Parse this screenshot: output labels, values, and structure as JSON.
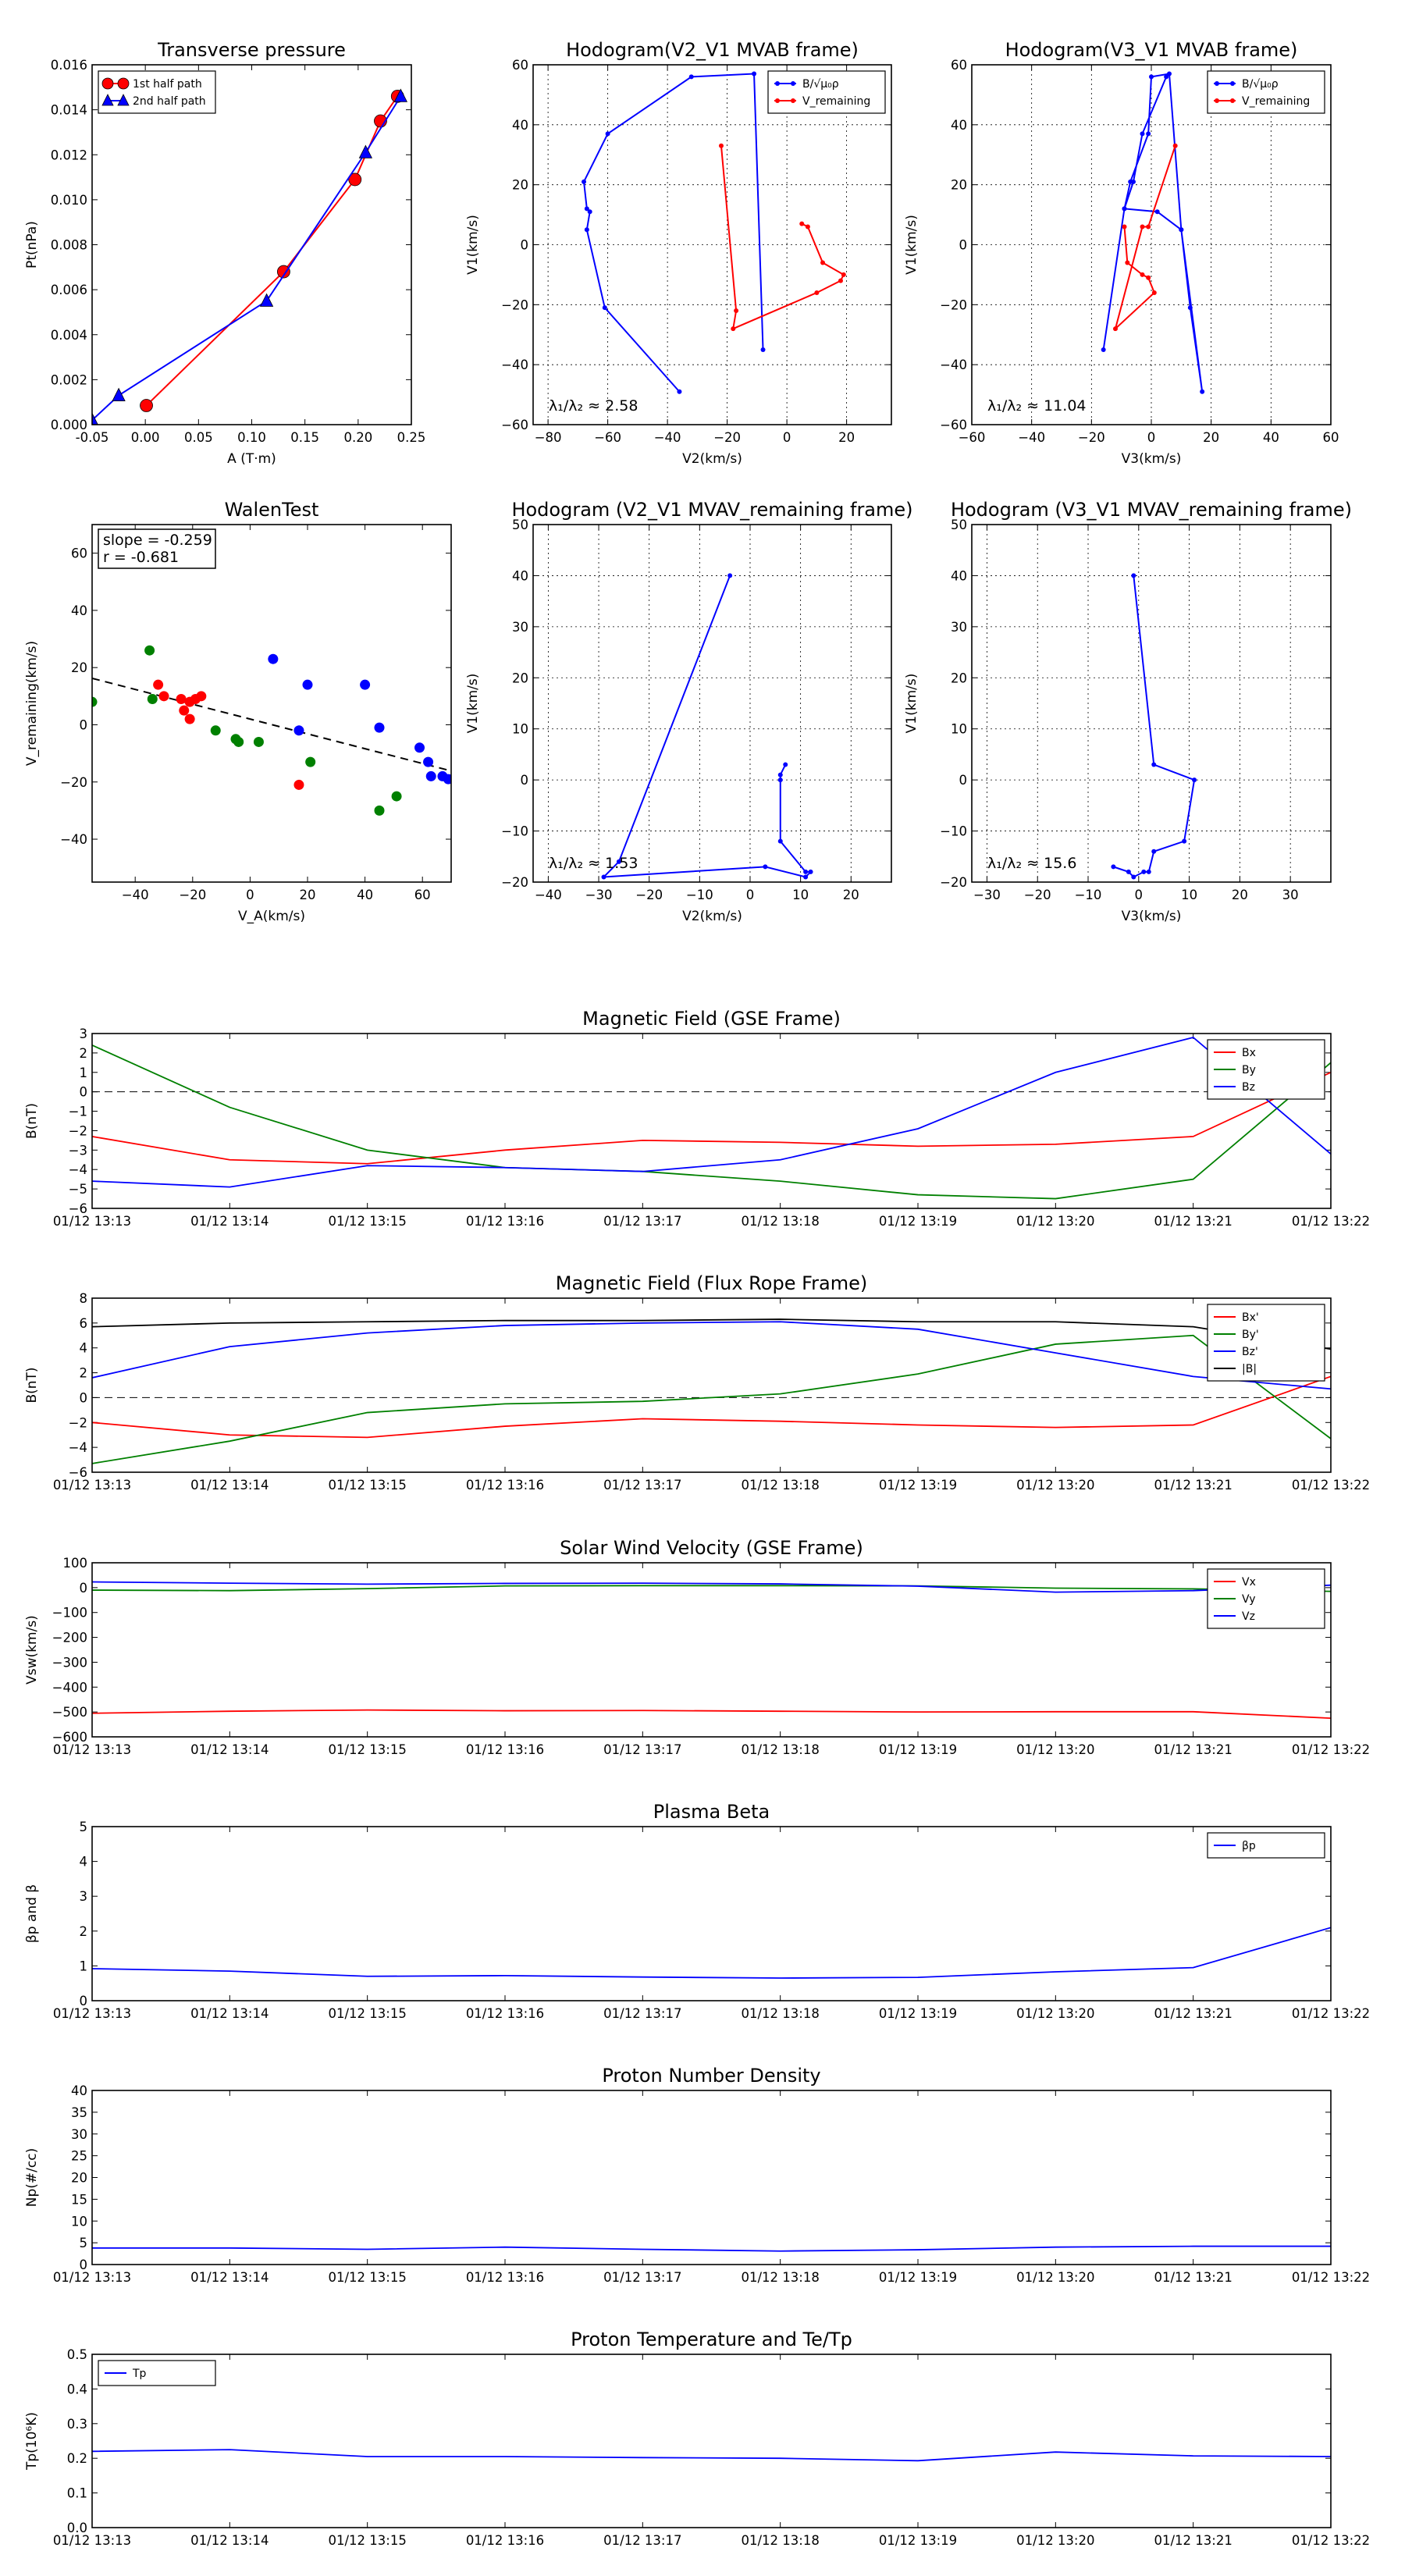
{
  "chart_data": [
    {
      "id": "tp",
      "type": "line",
      "title": "Transverse pressure",
      "xlabel": "A (T·m)",
      "ylabel": "Pt(nPa)",
      "xlim": [
        -0.05,
        0.25
      ],
      "ylim": [
        0,
        0.016
      ],
      "x_ticks": [
        "-0.05",
        "0.00",
        "0.05",
        "0.10",
        "0.15",
        "0.20",
        "0.25"
      ],
      "y_ticks": [
        "0.000",
        "0.002",
        "0.004",
        "0.006",
        "0.008",
        "0.010",
        "0.012",
        "0.014",
        "0.016"
      ],
      "grid": false,
      "legend": "top-left",
      "series": [
        {
          "name": "1st half path",
          "color": "#ff0000",
          "marker": "circle",
          "x": [
            0.001,
            0.13,
            0.197,
            0.221,
            0.237
          ],
          "y": [
            0.00085,
            0.0068,
            0.0109,
            0.0135,
            0.0146
          ]
        },
        {
          "name": "2nd half path",
          "color": "#0000ff",
          "marker": "triangle",
          "x": [
            -0.05,
            -0.025,
            0.114,
            0.207,
            0.24
          ],
          "y": [
            0.0002,
            0.0013,
            0.0055,
            0.0121,
            0.0146
          ]
        }
      ]
    },
    {
      "id": "h1",
      "type": "line",
      "title": "Hodogram(V2_V1 MVAB frame)",
      "xlabel": "V2(km/s)",
      "ylabel": "V1(km/s)",
      "xlim": [
        -85,
        35
      ],
      "ylim": [
        -60,
        60
      ],
      "x_ticks": [
        "−80",
        "−60",
        "−40",
        "−20",
        "0",
        "20"
      ],
      "y_ticks": [
        "−60",
        "−40",
        "−20",
        "0",
        "20",
        "40",
        "60"
      ],
      "grid": true,
      "legend": "top-right",
      "annotation": "λ₁/λ₂ ≈ 2.58",
      "series": [
        {
          "name": "B/√μ₀ρ",
          "color": "#0000ff",
          "x": [
            -36,
            -61,
            -67,
            -66,
            -67,
            -68,
            -60,
            -32,
            -11,
            -8
          ],
          "y": [
            -49,
            -21,
            5,
            11,
            12,
            21,
            37,
            56,
            57,
            -35
          ]
        },
        {
          "name": "V_remaining",
          "color": "#ff0000",
          "x": [
            -22,
            -17,
            -18,
            10,
            18,
            19,
            12,
            7,
            5
          ],
          "y": [
            33,
            -22,
            -28,
            -16,
            -12,
            -10,
            -6,
            6,
            7
          ]
        }
      ]
    },
    {
      "id": "h2",
      "type": "line",
      "title": "Hodogram(V3_V1 MVAB frame)",
      "xlabel": "V3(km/s)",
      "ylabel": "V1(km/s)",
      "xlim": [
        -60,
        60
      ],
      "ylim": [
        -60,
        60
      ],
      "x_ticks": [
        "−60",
        "−40",
        "−20",
        "0",
        "20",
        "40",
        "60"
      ],
      "y_ticks": [
        "−60",
        "−40",
        "−20",
        "0",
        "20",
        "40",
        "60"
      ],
      "grid": true,
      "legend": "top-right",
      "annotation": "λ₁/λ₂ ≈ 11.04",
      "series": [
        {
          "name": "B/√μ₀ρ",
          "color": "#0000ff",
          "x": [
            -16,
            -9,
            -7,
            -1,
            0,
            6,
            10,
            17,
            13,
            10,
            2,
            -9,
            -6,
            -3,
            5
          ],
          "y": [
            -35,
            12,
            21,
            37,
            56,
            57,
            5,
            -49,
            -21,
            5,
            11,
            12,
            21,
            37,
            56
          ]
        },
        {
          "name": "V_remaining",
          "color": "#ff0000",
          "x": [
            8,
            -1,
            -3,
            -12,
            1,
            -1,
            -3,
            -8,
            -9
          ],
          "y": [
            33,
            6,
            6,
            -28,
            -16,
            -11,
            -10,
            -6,
            6
          ]
        }
      ]
    },
    {
      "id": "walen",
      "type": "scatter",
      "title": "WalenTest",
      "xlabel": "V_A(km/s)",
      "ylabel": "V_remaining(km/s)",
      "xlim": [
        -55,
        70
      ],
      "ylim": [
        -55,
        70
      ],
      "x_ticks": [
        "−40",
        "−20",
        "0",
        "20",
        "40",
        "60"
      ],
      "y_ticks": [
        "−40",
        "−20",
        "0",
        "20",
        "40",
        "60"
      ],
      "grid": false,
      "annotation_lines": [
        "slope = -0.259",
        "r = -0.681"
      ],
      "fit": {
        "slope": -0.259,
        "intercept": 2.0
      },
      "series": [
        {
          "color": "#ff0000",
          "x": [
            -32,
            -30,
            -24,
            -21,
            -19,
            -23,
            -21,
            -17,
            17
          ],
          "y": [
            14,
            10,
            9,
            8,
            9,
            5,
            2,
            10,
            -21
          ]
        },
        {
          "color": "#008000",
          "x": [
            -55,
            -35,
            -34,
            -12,
            -5,
            -4,
            3,
            21,
            45,
            51
          ],
          "y": [
            8,
            26,
            9,
            -2,
            -5,
            -6,
            -6,
            -13,
            -30,
            -25
          ]
        },
        {
          "color": "#0000ff",
          "x": [
            8,
            17,
            20,
            40,
            45,
            59,
            62,
            63,
            67,
            69
          ],
          "y": [
            23,
            -2,
            14,
            14,
            -1,
            -8,
            -13,
            -18,
            -18,
            -19
          ]
        }
      ]
    },
    {
      "id": "h3",
      "type": "line",
      "title": "Hodogram (V2_V1 MVAV_remaining frame)",
      "xlabel": "V2(km/s)",
      "ylabel": "V1(km/s)",
      "xlim": [
        -43,
        28
      ],
      "ylim": [
        -20,
        50
      ],
      "x_ticks": [
        "−40",
        "−30",
        "−20",
        "−10",
        "0",
        "10",
        "20"
      ],
      "y_ticks": [
        "−20",
        "−10",
        "0",
        "10",
        "20",
        "30",
        "40",
        "50"
      ],
      "grid": true,
      "annotation": "λ₁/λ₂ ≈ 1.53",
      "series": [
        {
          "color": "#0000ff",
          "x": [
            -4,
            -26,
            -29,
            3,
            11,
            12,
            11,
            6,
            6,
            6,
            7
          ],
          "y": [
            40,
            -16,
            -19,
            -17,
            -19,
            -18,
            -18,
            -12,
            0,
            1,
            3
          ]
        }
      ]
    },
    {
      "id": "h4",
      "type": "line",
      "title": "Hodogram (V3_V1 MVAV_remaining frame)",
      "xlabel": "V3(km/s)",
      "ylabel": "V1(km/s)",
      "xlim": [
        -33,
        38
      ],
      "ylim": [
        -20,
        50
      ],
      "x_ticks": [
        "−30",
        "−20",
        "−10",
        "0",
        "10",
        "20",
        "30"
      ],
      "y_ticks": [
        "−20",
        "−10",
        "0",
        "10",
        "20",
        "30",
        "40",
        "50"
      ],
      "grid": true,
      "annotation": "λ₁/λ₂ ≈ 15.6",
      "series": [
        {
          "color": "#0000ff",
          "x": [
            -1,
            3,
            11,
            9,
            3,
            2,
            1,
            -1,
            -2,
            -5
          ],
          "y": [
            40,
            3,
            0,
            -12,
            -14,
            -18,
            -18,
            -19,
            -18,
            -17
          ]
        }
      ]
    },
    {
      "id": "ts1",
      "type": "line",
      "title": "Magnetic Field (GSE Frame)",
      "ylabel": "B(nT)",
      "ylim": [
        -6,
        3
      ],
      "y_ticks": [
        "−6",
        "−5",
        "−4",
        "−3",
        "−2",
        "−1",
        "0",
        "1",
        "2",
        "3"
      ],
      "zero_line": true,
      "legend": "top-right",
      "series": [
        {
          "name": "Bx",
          "color": "#ff0000",
          "values": [
            -2.3,
            -3.5,
            -3.7,
            -3.0,
            -2.5,
            -2.6,
            -2.8,
            -2.7,
            -2.3,
            1.0
          ]
        },
        {
          "name": "By",
          "color": "#008000",
          "values": [
            2.4,
            -0.8,
            -3.0,
            -3.9,
            -4.1,
            -4.6,
            -5.3,
            -5.5,
            -4.5,
            1.5
          ]
        },
        {
          "name": "Bz",
          "color": "#0000ff",
          "values": [
            -4.6,
            -4.9,
            -3.8,
            -3.9,
            -4.1,
            -3.5,
            -1.9,
            1.0,
            2.8,
            -3.2
          ]
        }
      ]
    },
    {
      "id": "ts2",
      "type": "line",
      "title": "Magnetic Field (Flux Rope Frame)",
      "ylabel": "B(nT)",
      "ylim": [
        -6,
        8
      ],
      "y_ticks": [
        "−6",
        "−4",
        "−2",
        "0",
        "2",
        "4",
        "6",
        "8"
      ],
      "zero_line": true,
      "legend": "top-right",
      "series": [
        {
          "name": "Bx'",
          "color": "#ff0000",
          "values": [
            -2.0,
            -3.0,
            -3.2,
            -2.3,
            -1.7,
            -1.9,
            -2.2,
            -2.4,
            -2.2,
            1.7
          ]
        },
        {
          "name": "By'",
          "color": "#008000",
          "values": [
            -5.3,
            -3.5,
            -1.2,
            -0.5,
            -0.3,
            0.3,
            1.9,
            4.3,
            5.0,
            -3.3
          ]
        },
        {
          "name": "Bz'",
          "color": "#0000ff",
          "values": [
            1.6,
            4.1,
            5.2,
            5.8,
            6.0,
            6.1,
            5.5,
            3.6,
            1.7,
            0.7
          ]
        },
        {
          "name": "|B|",
          "color": "#000000",
          "values": [
            5.7,
            6.0,
            6.1,
            6.2,
            6.2,
            6.3,
            6.1,
            6.1,
            5.7,
            3.9
          ]
        }
      ]
    },
    {
      "id": "ts3",
      "type": "line",
      "title": "Solar Wind Velocity (GSE Frame)",
      "ylabel": "Vsw(km/s)",
      "ylim": [
        -600,
        100
      ],
      "y_ticks": [
        "−600",
        "−500",
        "−400",
        "−300",
        "−200",
        "−100",
        "0",
        "100"
      ],
      "legend": "top-right",
      "series": [
        {
          "name": "Vx",
          "color": "#ff0000",
          "values": [
            -505,
            -497,
            -492,
            -495,
            -494,
            -497,
            -500,
            -499,
            -499,
            -525
          ]
        },
        {
          "name": "Vy",
          "color": "#008000",
          "values": [
            -10,
            -12,
            -4,
            7,
            8,
            8,
            7,
            -2,
            -5,
            -15
          ]
        },
        {
          "name": "Vz",
          "color": "#0000ff",
          "values": [
            23,
            18,
            14,
            17,
            18,
            15,
            6,
            -18,
            -12,
            10
          ]
        }
      ]
    },
    {
      "id": "ts4",
      "type": "line",
      "title": "Plasma Beta",
      "ylabel": "βp and β",
      "ylim": [
        0,
        5
      ],
      "y_ticks": [
        "0",
        "1",
        "2",
        "3",
        "4",
        "5"
      ],
      "legend": "top-right",
      "series": [
        {
          "name": "βp",
          "color": "#0000ff",
          "values": [
            0.92,
            0.85,
            0.7,
            0.72,
            0.68,
            0.65,
            0.67,
            0.83,
            0.95,
            2.1
          ]
        }
      ]
    },
    {
      "id": "ts5",
      "type": "line",
      "title": "Proton Number Density",
      "ylabel": "Np(#/cc)",
      "ylim": [
        0,
        40
      ],
      "y_ticks": [
        "0",
        "5",
        "10",
        "15",
        "20",
        "25",
        "30",
        "35",
        "40"
      ],
      "series": [
        {
          "color": "#0000ff",
          "values": [
            3.8,
            3.8,
            3.5,
            4.0,
            3.5,
            3.1,
            3.4,
            4.0,
            4.2,
            4.2
          ]
        }
      ]
    },
    {
      "id": "ts6",
      "type": "line",
      "title": "Proton Temperature and Te/Tp",
      "ylabel": "Tp(10⁶K)",
      "ylim": [
        0,
        0.5
      ],
      "y_ticks": [
        "0.0",
        "0.1",
        "0.2",
        "0.3",
        "0.4",
        "0.5"
      ],
      "legend": "top-left",
      "series": [
        {
          "name": "Tp",
          "color": "#0000ff",
          "values": [
            0.22,
            0.225,
            0.205,
            0.205,
            0.202,
            0.2,
            0.193,
            0.218,
            0.207,
            0.205
          ]
        }
      ]
    }
  ],
  "time_axis": {
    "labels": [
      "01/12 13:13",
      "01/12 13:14",
      "01/12 13:15",
      "01/12 13:16",
      "01/12 13:17",
      "01/12 13:18",
      "01/12 13:19",
      "01/12 13:20",
      "01/12 13:21",
      "01/12 13:22"
    ]
  }
}
